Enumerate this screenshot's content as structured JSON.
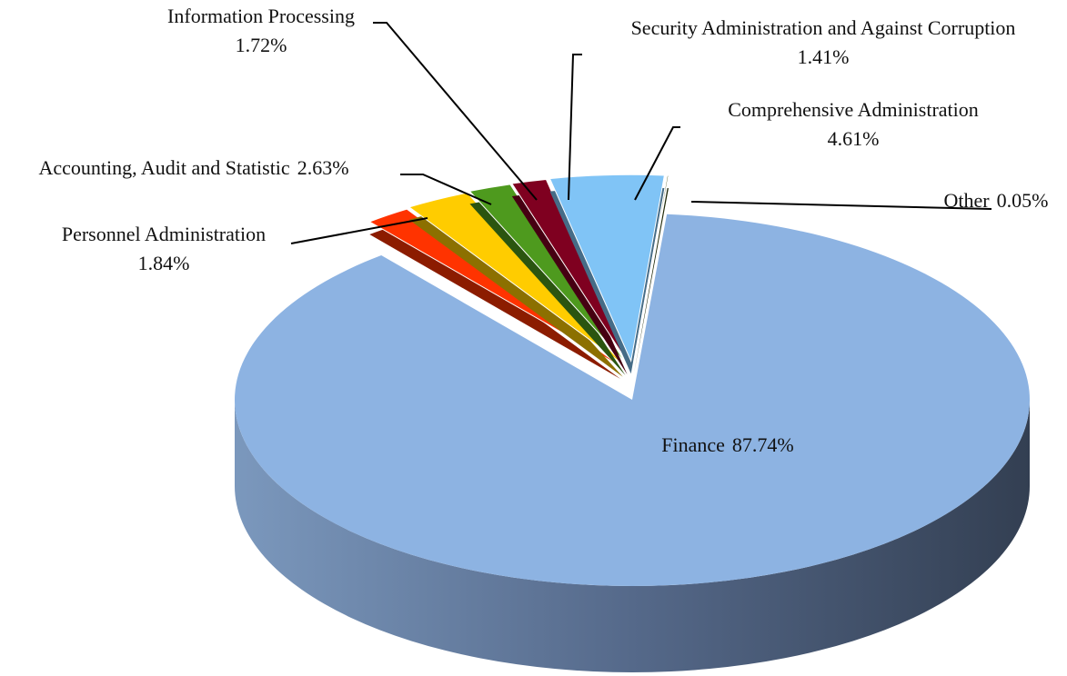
{
  "chart_data": {
    "type": "pie",
    "categories": [
      "Finance",
      "Personnel Administration",
      "Accounting, Audit and Statistic",
      "Information Processing",
      "Security Administration and Against Corruption",
      "Comprehensive Administration",
      "Other"
    ],
    "values": [
      87.74,
      1.84,
      2.63,
      1.72,
      1.41,
      4.61,
      0.05
    ],
    "value_labels": [
      "87.74%",
      "1.84%",
      "2.63%",
      "1.72%",
      "1.41%",
      "4.61%",
      "0.05%"
    ],
    "colors": [
      "#8db3e2",
      "#ff3300",
      "#ffcc00",
      "#4e9a1e",
      "#7f0020",
      "#80c4f6",
      "#3b4a10"
    ]
  }
}
